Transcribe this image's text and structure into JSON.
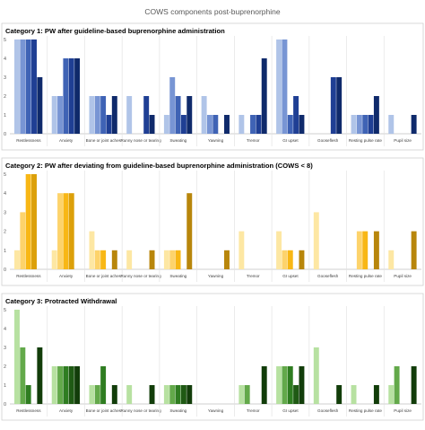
{
  "figure_title": "COWS components post-buprenorphine",
  "chart_data": [
    {
      "type": "bar",
      "title": "Category 1: PW after guideline-based buprenorphine administration",
      "ylim": [
        0,
        5
      ],
      "yticks": [
        0,
        1,
        2,
        3,
        4,
        5
      ],
      "grid": false,
      "categories": [
        "Restlessness",
        "Anxiety",
        "Bone or joint aches",
        "Runny nose or tearing",
        "Sweating",
        "Yawning",
        "Tremor",
        "GI upset",
        "Gooseflesh",
        "Resting pulse rate",
        "Pupil size"
      ],
      "colors": [
        "#b0c4e8",
        "#7895d4",
        "#3f63b5",
        "#1f3f94",
        "#0f2a6b"
      ],
      "series": [
        {
          "values": [
            5,
            2,
            2,
            2,
            1,
            2,
            1,
            5,
            0,
            1,
            1
          ]
        },
        {
          "values": [
            5,
            2,
            2,
            0,
            3,
            1,
            0,
            5,
            0,
            1,
            0
          ]
        },
        {
          "values": [
            5,
            4,
            2,
            0,
            2,
            1,
            1,
            1,
            0,
            1,
            0
          ]
        },
        {
          "values": [
            5,
            4,
            1,
            2,
            1,
            0,
            1,
            2,
            3,
            1,
            0
          ]
        },
        {
          "values": [
            3,
            4,
            2,
            1,
            2,
            1,
            4,
            1,
            3,
            2,
            1
          ]
        }
      ]
    },
    {
      "type": "bar",
      "title": "Category 2: PW after deviating from guideline-based buprenorphine administration (COWS < 8)",
      "ylim": [
        0,
        5
      ],
      "yticks": [
        0,
        1,
        2,
        3,
        4,
        5
      ],
      "grid": false,
      "categories": [
        "Restlessness",
        "Anxiety",
        "Bone or joint aches",
        "Runny nose or tearing",
        "Sweating",
        "Yawning",
        "Tremor",
        "GI upset",
        "Gooseflesh",
        "Resting pulse rate",
        "Pupil size"
      ],
      "colors": [
        "#fde7a3",
        "#fdd36b",
        "#f8b715",
        "#dca00a",
        "#b8860b"
      ],
      "series": [
        {
          "values": [
            1,
            1,
            2,
            1,
            1,
            0,
            2,
            2,
            3,
            0,
            1
          ]
        },
        {
          "values": [
            3,
            4,
            1,
            0,
            1,
            0,
            0,
            1,
            0,
            2,
            0
          ]
        },
        {
          "values": [
            5,
            4,
            1,
            0,
            1,
            0,
            0,
            1,
            0,
            2,
            0
          ]
        },
        {
          "values": [
            5,
            4,
            0,
            0,
            0,
            0,
            0,
            0,
            0,
            0,
            0
          ]
        },
        {
          "values": [
            0,
            0,
            1,
            1,
            4,
            1,
            0,
            1,
            0,
            2,
            2
          ]
        }
      ]
    },
    {
      "type": "bar",
      "title": "Category 3: Protracted Withdrawal",
      "ylim": [
        0,
        5
      ],
      "yticks": [
        0,
        1,
        2,
        3,
        4,
        5
      ],
      "grid": false,
      "categories": [
        "Restlessness",
        "Anxiety",
        "Bone or joint aches",
        "Runny nose or tearing",
        "Sweating",
        "Yawning",
        "Tremor",
        "GI upset",
        "Gooseflesh",
        "Resting pulse rate",
        "Pupil size"
      ],
      "colors": [
        "#b7e1a1",
        "#63a94a",
        "#2f7d21",
        "#1f5a14",
        "#123d0a"
      ],
      "series": [
        {
          "values": [
            5,
            2,
            1,
            1,
            1,
            0,
            1,
            2,
            3,
            1,
            1
          ]
        },
        {
          "values": [
            3,
            2,
            1,
            0,
            1,
            0,
            1,
            2,
            0,
            0,
            2
          ]
        },
        {
          "values": [
            1,
            2,
            2,
            0,
            1,
            0,
            0,
            2,
            0,
            0,
            0
          ]
        },
        {
          "values": [
            0,
            2,
            0,
            0,
            1,
            0,
            0,
            1,
            0,
            0,
            0
          ]
        },
        {
          "values": [
            3,
            2,
            1,
            1,
            1,
            0,
            2,
            2,
            1,
            1,
            2
          ]
        }
      ]
    }
  ]
}
